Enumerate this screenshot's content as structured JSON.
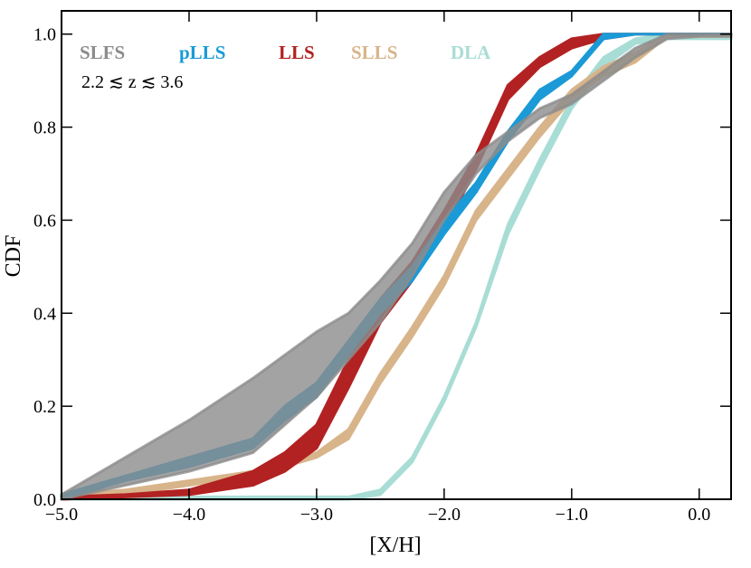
{
  "chart_data": {
    "type": "band",
    "xlabel": "[X/H]",
    "ylabel": "CDF",
    "annotation": "2.2 ≲ z ≲ 3.6",
    "xlim": [
      -5,
      0.25
    ],
    "ylim": [
      0,
      1.05
    ],
    "xticks": [
      {
        "value": -5,
        "label": "−5.0"
      },
      {
        "value": -4,
        "label": "−4.0"
      },
      {
        "value": -3,
        "label": "−3.0"
      },
      {
        "value": -2,
        "label": "−2.0"
      },
      {
        "value": -1,
        "label": "−1.0"
      },
      {
        "value": 0,
        "label": "0.0"
      }
    ],
    "yticks": [
      {
        "value": 0,
        "label": "0.0"
      },
      0.2,
      0.4,
      0.6,
      0.8,
      {
        "value": 1,
        "label": "1.0"
      }
    ],
    "x": [
      -5,
      -4.5,
      -4,
      -3.5,
      -3.25,
      -3,
      -2.75,
      -2.5,
      -2.25,
      -2,
      -1.75,
      -1.5,
      -1.25,
      -1,
      -0.75,
      -0.5,
      -0.25,
      0,
      0.25
    ],
    "series": [
      {
        "name": "SLFS",
        "color": "#8c8c8c",
        "opacity": 0.8,
        "lower": [
          0,
          0.03,
          0.06,
          0.1,
          0.16,
          0.22,
          0.3,
          0.38,
          0.48,
          0.6,
          0.7,
          0.77,
          0.82,
          0.85,
          0.9,
          0.95,
          0.99,
          0.995,
          0.995
        ],
        "upper": [
          0.01,
          0.09,
          0.17,
          0.26,
          0.31,
          0.36,
          0.4,
          0.47,
          0.55,
          0.66,
          0.74,
          0.79,
          0.84,
          0.87,
          0.92,
          0.97,
          1,
          1,
          1
        ]
      },
      {
        "name": "pLLS",
        "color": "#1a9ad6",
        "opacity": 1,
        "lower": [
          0,
          0.04,
          0.07,
          0.11,
          0.17,
          0.22,
          0.31,
          0.4,
          0.47,
          0.57,
          0.66,
          0.77,
          0.86,
          0.91,
          0.99,
          1,
          1,
          1,
          1
        ],
        "upper": [
          0.01,
          0.05,
          0.09,
          0.13,
          0.2,
          0.25,
          0.34,
          0.43,
          0.5,
          0.6,
          0.68,
          0.79,
          0.88,
          0.92,
          1,
          1,
          1,
          1,
          1
        ]
      },
      {
        "name": "LLS",
        "color": "#b22222",
        "opacity": 1,
        "lower": [
          0,
          0.005,
          0.01,
          0.03,
          0.06,
          0.11,
          0.24,
          0.38,
          0.47,
          0.58,
          0.71,
          0.86,
          0.93,
          0.97,
          0.99,
          1,
          1,
          1,
          1
        ],
        "upper": [
          0.005,
          0.01,
          0.02,
          0.06,
          0.1,
          0.16,
          0.3,
          0.43,
          0.51,
          0.62,
          0.74,
          0.89,
          0.95,
          0.99,
          1,
          1,
          1,
          1,
          1
        ]
      },
      {
        "name": "SLLS",
        "color": "#d8b48a",
        "opacity": 1,
        "lower": [
          0,
          0.01,
          0.03,
          0.05,
          0.07,
          0.09,
          0.13,
          0.25,
          0.35,
          0.46,
          0.6,
          0.69,
          0.78,
          0.86,
          0.91,
          0.94,
          0.995,
          0.995,
          0.995
        ],
        "upper": [
          0.01,
          0.02,
          0.04,
          0.06,
          0.08,
          0.1,
          0.15,
          0.27,
          0.37,
          0.48,
          0.62,
          0.71,
          0.8,
          0.88,
          0.93,
          0.96,
          1,
          1,
          1
        ]
      },
      {
        "name": "DLA",
        "color": "#a8ddd5",
        "opacity": 1,
        "lower": [
          0,
          0,
          0,
          0,
          0,
          0,
          0,
          0.01,
          0.08,
          0.21,
          0.37,
          0.57,
          0.71,
          0.84,
          0.93,
          0.98,
          0.99,
          0.99,
          0.99
        ],
        "upper": [
          0.005,
          0.005,
          0.005,
          0.005,
          0.005,
          0.005,
          0.005,
          0.02,
          0.09,
          0.22,
          0.38,
          0.59,
          0.73,
          0.86,
          0.95,
          0.99,
          1,
          1,
          1
        ]
      }
    ]
  }
}
